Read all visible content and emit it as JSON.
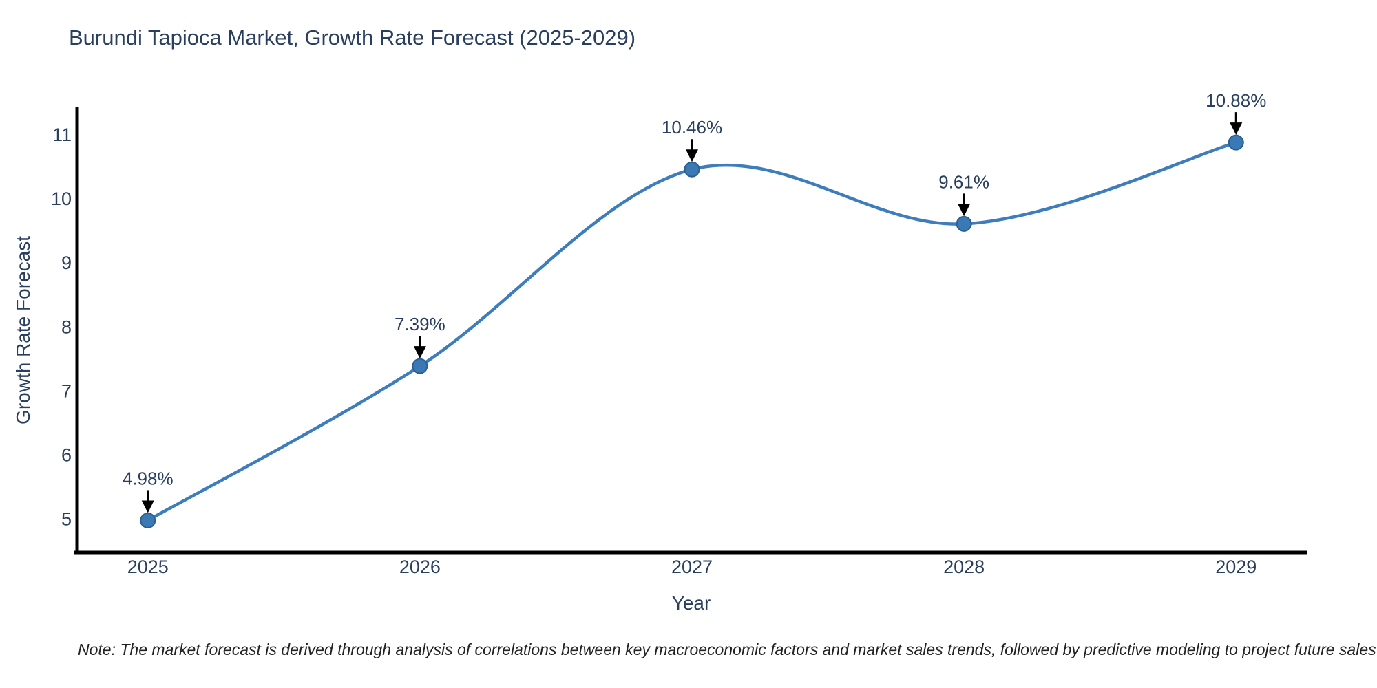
{
  "figure": {
    "note": "Note: The market forecast is derived through analysis of correlations between key macroeconomic factors and market sales trends, followed by predictive modeling to project future sales"
  },
  "chart_data": {
    "type": "line",
    "title": "Burundi Tapioca Market, Growth Rate Forecast (2025-2029)",
    "xlabel": "Year",
    "ylabel": "Growth Rate Forecast",
    "x": [
      2025,
      2026,
      2027,
      2028,
      2029
    ],
    "series": [
      {
        "name": "Growth Rate Forecast",
        "values": [
          4.98,
          7.39,
          10.46,
          9.61,
          10.88
        ]
      }
    ],
    "point_labels": [
      "4.98%",
      "7.39%",
      "10.46%",
      "9.61%",
      "10.88%"
    ],
    "x_tick_labels": [
      "2025",
      "2026",
      "2027",
      "2028",
      "2029"
    ],
    "y_tick_labels": [
      "5",
      "6",
      "7",
      "8",
      "9",
      "10",
      "11"
    ],
    "y_ticks": [
      5,
      6,
      7,
      8,
      9,
      10,
      11
    ],
    "xlim": [
      2024.74,
      2029.26
    ],
    "ylim": [
      4.48,
      11.44
    ],
    "line_shape": "spline",
    "grid": false,
    "legend_position": "none",
    "colors": {
      "line": "#3d7dbc",
      "marker": "#3b79b5",
      "marker_edge": "#2c5f91",
      "text": "#2a3f5f",
      "axis": "#000000",
      "arrow": "#000000",
      "note_text": "#222222",
      "background": "#ffffff"
    }
  }
}
